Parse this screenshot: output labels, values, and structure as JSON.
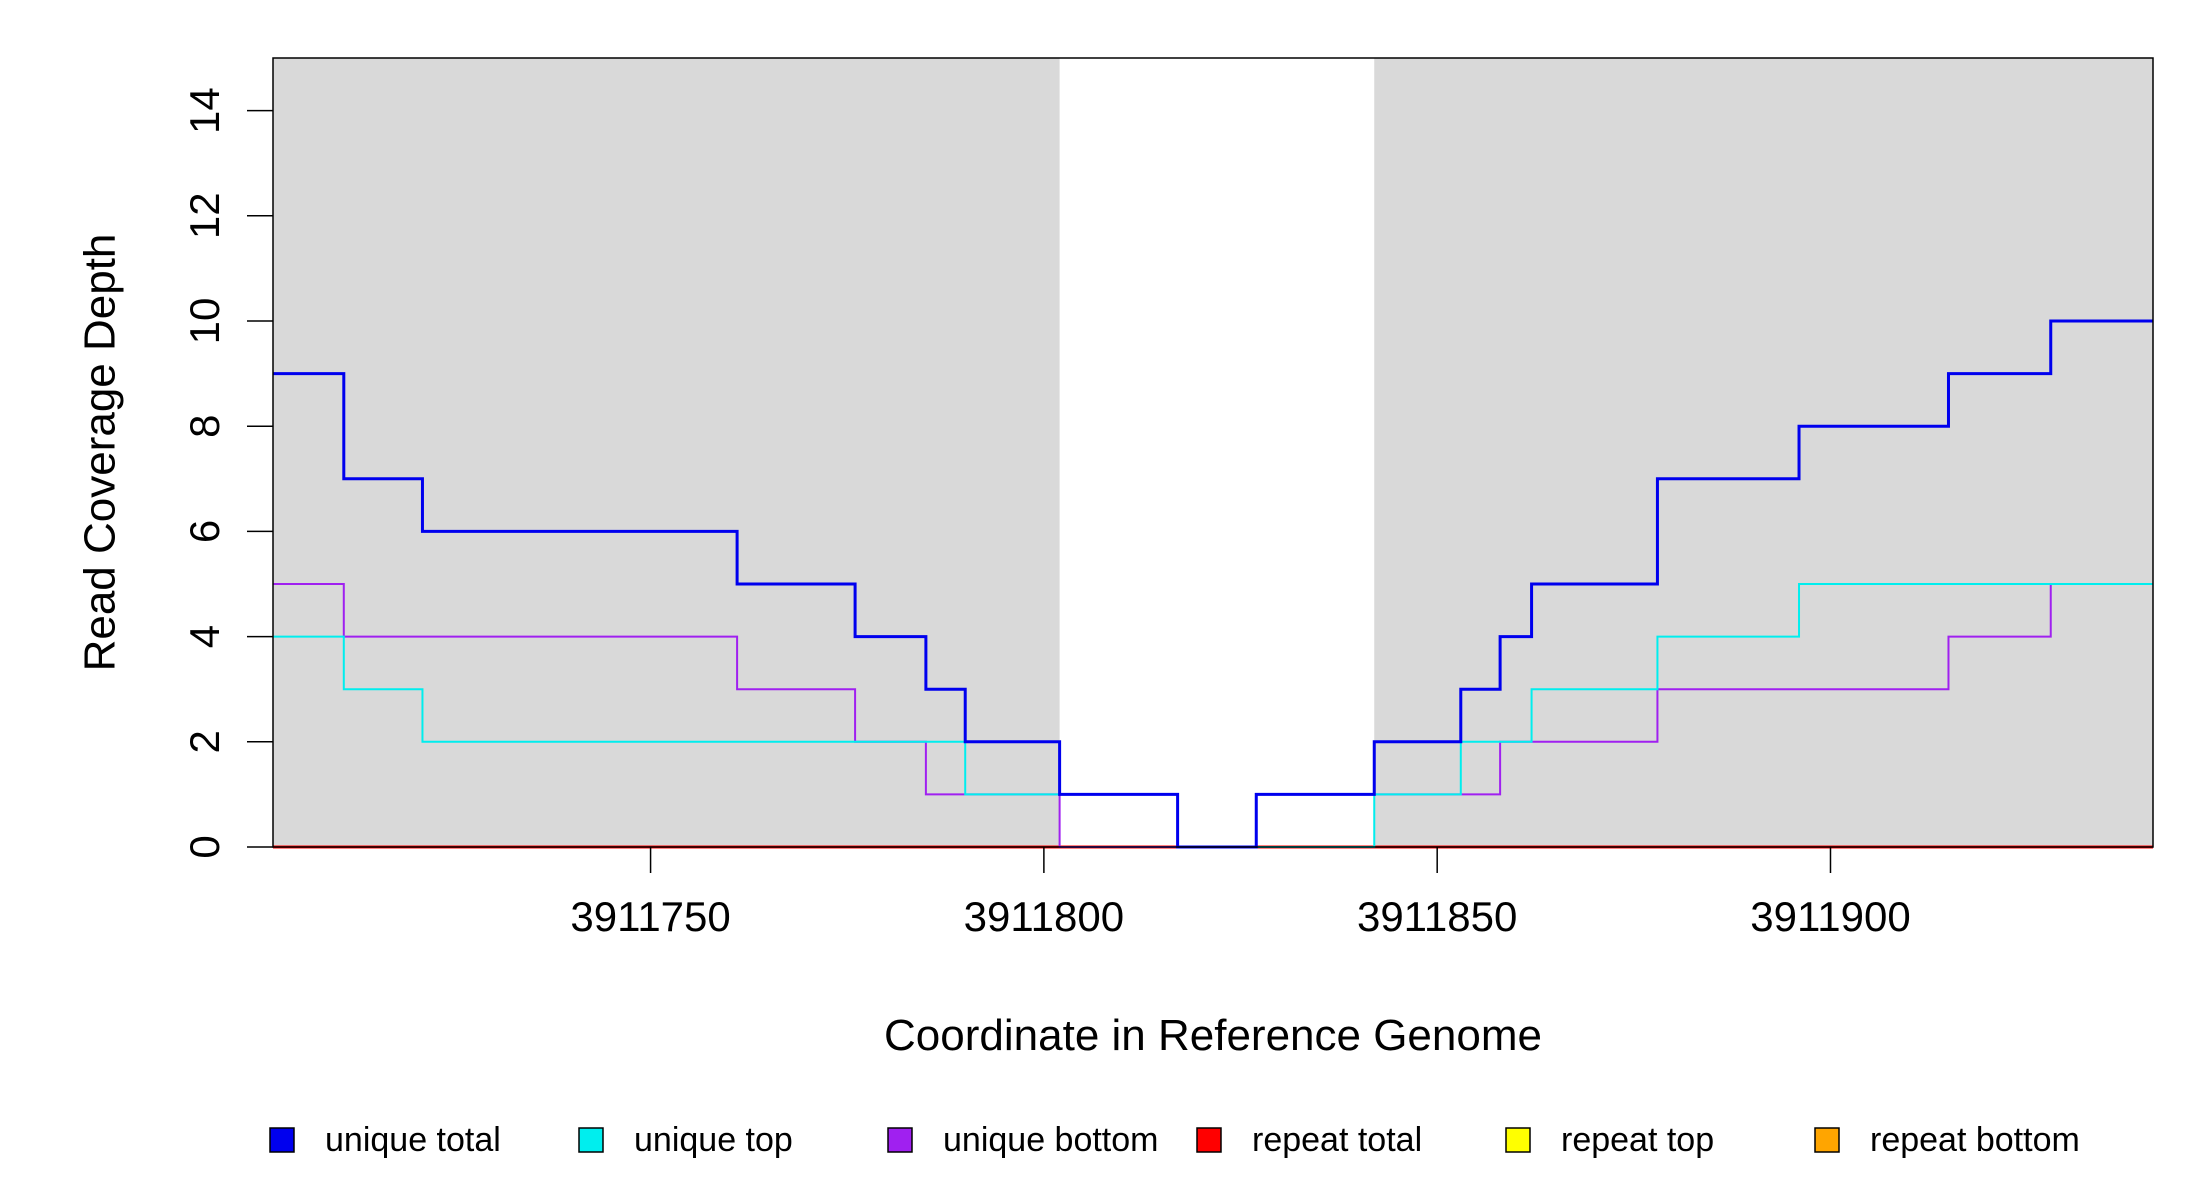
{
  "chart_data": {
    "type": "line",
    "step": true,
    "xlabel": "Coordinate in Reference Genome",
    "ylabel": "Read Coverage Depth",
    "xlim": [
      3911702,
      3911941
    ],
    "ylim": [
      0,
      15
    ],
    "x_ticks": [
      3911750,
      3911800,
      3911850,
      3911900
    ],
    "y_ticks": [
      0,
      2,
      4,
      6,
      8,
      10,
      12,
      14
    ],
    "shaded_regions": [
      {
        "start": 3911702,
        "end": 3911802,
        "color": "#d9d9d9"
      },
      {
        "start": 3911842,
        "end": 3911941,
        "color": "#d9d9d9"
      }
    ],
    "series": [
      {
        "name": "unique total",
        "color": "#0000ee",
        "points": [
          [
            3911702,
            9
          ],
          [
            3911711,
            7
          ],
          [
            3911721,
            6
          ],
          [
            3911761,
            5
          ],
          [
            3911776,
            4
          ],
          [
            3911785,
            3
          ],
          [
            3911790,
            2
          ],
          [
            3911802,
            1
          ],
          [
            3911817,
            0
          ],
          [
            3911827,
            1
          ],
          [
            3911842,
            2
          ],
          [
            3911853,
            3
          ],
          [
            3911858,
            4
          ],
          [
            3911862,
            5
          ],
          [
            3911878,
            7
          ],
          [
            3911896,
            8
          ],
          [
            3911915,
            9
          ],
          [
            3911928,
            10
          ],
          [
            3911941,
            10
          ]
        ]
      },
      {
        "name": "unique top",
        "color": "#00eeee",
        "points": [
          [
            3911702,
            4
          ],
          [
            3911711,
            3
          ],
          [
            3911721,
            2
          ],
          [
            3911790,
            1
          ],
          [
            3911817,
            0
          ],
          [
            3911842,
            1
          ],
          [
            3911853,
            2
          ],
          [
            3911862,
            3
          ],
          [
            3911878,
            4
          ],
          [
            3911896,
            5
          ],
          [
            3911941,
            5
          ]
        ]
      },
      {
        "name": "unique bottom",
        "color": "#a020f0",
        "points": [
          [
            3911702,
            5
          ],
          [
            3911711,
            4
          ],
          [
            3911761,
            3
          ],
          [
            3911776,
            2
          ],
          [
            3911785,
            1
          ],
          [
            3911802,
            0
          ],
          [
            3911827,
            1
          ],
          [
            3911858,
            2
          ],
          [
            3911878,
            3
          ],
          [
            3911915,
            4
          ],
          [
            3911928,
            5
          ],
          [
            3911941,
            5
          ]
        ]
      },
      {
        "name": "repeat total",
        "color": "#ff0000",
        "points": [
          [
            3911702,
            0
          ],
          [
            3911941,
            0
          ]
        ]
      },
      {
        "name": "repeat top",
        "color": "#ffff00",
        "points": [
          [
            3911702,
            0
          ],
          [
            3911941,
            0
          ]
        ]
      },
      {
        "name": "repeat bottom",
        "color": "#ffa500",
        "points": [
          [
            3911702,
            0
          ],
          [
            3911941,
            0
          ]
        ]
      }
    ],
    "legend": [
      "unique total",
      "unique top",
      "unique bottom",
      "repeat total",
      "repeat top",
      "repeat bottom"
    ],
    "legend_placement": "bottom"
  }
}
